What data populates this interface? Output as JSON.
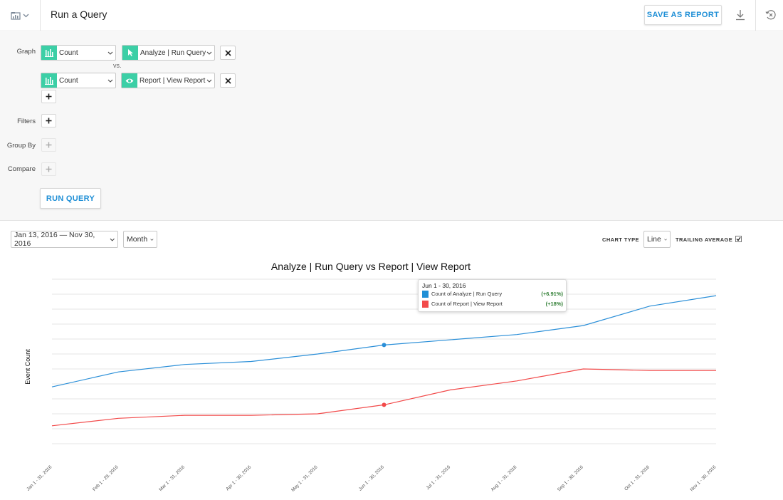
{
  "header": {
    "title": "Run a Query",
    "save_label": "SAVE AS REPORT"
  },
  "query": {
    "graph_label": "Graph",
    "vs_label": "vs.",
    "rows": [
      {
        "aggregate": "Count",
        "event": "Analyze | Run Query",
        "event_icon": "cursor-icon"
      },
      {
        "aggregate": "Count",
        "event": "Report | View Report",
        "event_icon": "eye-icon"
      }
    ],
    "filters_label": "Filters",
    "group_by_label": "Group By",
    "compare_label": "Compare",
    "run_label": "RUN QUERY"
  },
  "controls": {
    "date_range": "Jan 13, 2016 — Nov 30, 2016",
    "interval": "Month",
    "chart_type_label": "CHART TYPE",
    "chart_type_value": "Line",
    "trailing_label": "TRAILING AVERAGE",
    "trailing_checked": true
  },
  "chart_data": {
    "type": "line",
    "title": "Analyze | Run Query vs Report | View Report",
    "ylabel": "Event Count",
    "xlabel": "",
    "categories": [
      "Jan 1 - 31, 2016",
      "Feb 1 - 29, 2016",
      "Mar 1 - 31, 2016",
      "Apr 1 - 30, 2016",
      "May 1 - 31, 2016",
      "Jun 1 - 30, 2016",
      "Jul 1 - 31, 2016",
      "Aug 1 - 31, 2016",
      "Sep 1 - 30, 2016",
      "Oct 1 - 31, 2016",
      "Nov 1 - 30, 2016"
    ],
    "ylim": [
      0,
      11
    ],
    "grid": true,
    "series": [
      {
        "name": "Count of Analyze | Run Query",
        "color": "#2b8fd8",
        "values": [
          3.8,
          4.8,
          5.3,
          5.5,
          6.0,
          6.6,
          6.95,
          7.3,
          7.9,
          9.2,
          9.9
        ]
      },
      {
        "name": "Count of Report | View Report",
        "color": "#f24a4a",
        "values": [
          1.2,
          1.7,
          1.9,
          1.9,
          2.0,
          2.6,
          3.6,
          4.2,
          5.0,
          4.9,
          4.9
        ]
      }
    ],
    "highlight_index": 5
  },
  "tooltip": {
    "title": "Jun 1 - 30, 2016",
    "rows": [
      {
        "label": "Count of Analyze | Run Query",
        "value": "(+6.91%)",
        "color": "#1f8fd6"
      },
      {
        "label": "Count of Report | View Report",
        "value": "(+18%)",
        "color": "#f24a4a"
      }
    ]
  }
}
